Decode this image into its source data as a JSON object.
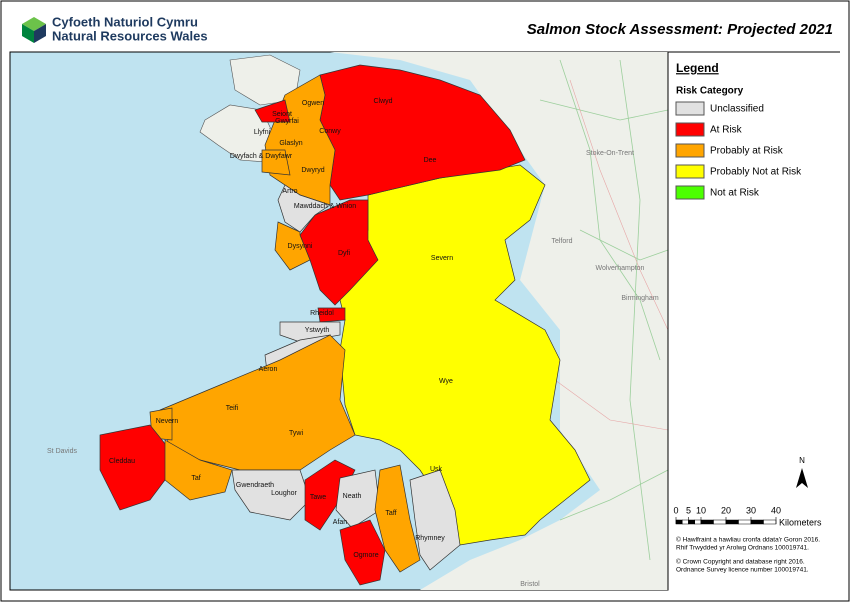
{
  "header": {
    "logo_line1": "Cyfoeth Naturiol Cymru",
    "logo_line2": "Natural Resources Wales",
    "title": "Salmon Stock Assessment: Projected 2021"
  },
  "legend": {
    "title": "Legend",
    "subtitle": "Risk Category",
    "items": [
      {
        "label": "Unclassified",
        "color": "#e1e1e1"
      },
      {
        "label": "At Risk",
        "color": "#ff0000"
      },
      {
        "label": "Probably at Risk",
        "color": "#ffa500"
      },
      {
        "label": "Probably Not at Risk",
        "color": "#ffff00"
      },
      {
        "label": "Not at Risk",
        "color": "#4cff00"
      }
    ]
  },
  "map": {
    "regions": [
      {
        "name": "Ogwen"
      },
      {
        "name": "Seiont"
      },
      {
        "name": "Gwyrfai"
      },
      {
        "name": "Llyfni"
      },
      {
        "name": "Conwy"
      },
      {
        "name": "Clwyd"
      },
      {
        "name": "Dee"
      },
      {
        "name": "Glaslyn"
      },
      {
        "name": "Dwyfach & Dwyfawr"
      },
      {
        "name": "Dwyryd"
      },
      {
        "name": "Artro"
      },
      {
        "name": "Mawddach & Wnion"
      },
      {
        "name": "Dysynni"
      },
      {
        "name": "Dyfi"
      },
      {
        "name": "Severn"
      },
      {
        "name": "Rheidol"
      },
      {
        "name": "Ystwyth"
      },
      {
        "name": "Aeron"
      },
      {
        "name": "Teifi"
      },
      {
        "name": "Nevern"
      },
      {
        "name": "Cleddau"
      },
      {
        "name": "Taf"
      },
      {
        "name": "Tywi"
      },
      {
        "name": "Wye"
      },
      {
        "name": "Usk"
      },
      {
        "name": "Gwendraeth"
      },
      {
        "name": "Loughor"
      },
      {
        "name": "Tawe"
      },
      {
        "name": "Neath"
      },
      {
        "name": "Afan"
      },
      {
        "name": "Ogmore"
      },
      {
        "name": "Taff"
      },
      {
        "name": "Rhymney"
      }
    ],
    "places": [
      "Stoke-On-Trent",
      "Telford",
      "Wolverhampton",
      "Birmingham",
      "St Davids",
      "Bristol"
    ]
  },
  "north": "N",
  "scale": {
    "ticks": [
      0,
      5,
      10,
      20,
      30,
      40
    ],
    "unit": "Kilometers"
  },
  "copyright": [
    [
      "© Hawlfraint a hawliau cronfa ddata'r Goron 2016.",
      "Rhif Trwydded yr Arolwg Ordnans 100019741."
    ],
    [
      "© Crown Copyright and database right 2016.",
      "Ordnance Survey licence number 100019741."
    ]
  ]
}
